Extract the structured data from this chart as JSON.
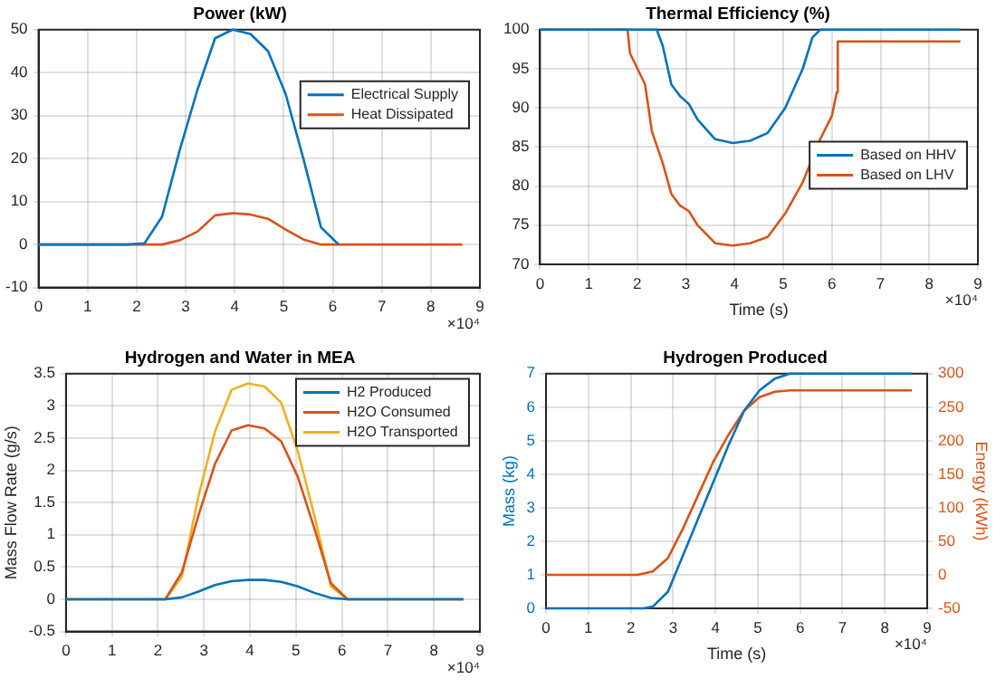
{
  "chart_data": [
    {
      "type": "line",
      "title": "Power (kW)",
      "xlim": [
        0,
        9
      ],
      "xticks": [
        0,
        1,
        2,
        3,
        4,
        5,
        6,
        7,
        8,
        9
      ],
      "ylim": [
        -10,
        50
      ],
      "yticks": [
        -10,
        0,
        10,
        20,
        30,
        40,
        50
      ],
      "grid": true,
      "legend": "top right",
      "annotations": [
        "×10⁴"
      ],
      "series": [
        {
          "name": "Electrical Supply",
          "color": "#0072bd",
          "x": [
            0,
            1.8,
            2.16,
            2.52,
            2.88,
            3.24,
            3.6,
            3.96,
            4.32,
            4.68,
            5.04,
            5.4,
            5.76,
            6.12
          ],
          "values": [
            0,
            0,
            0.3,
            6.5,
            22,
            36,
            48,
            50,
            49,
            45,
            35,
            20,
            4,
            0
          ]
        },
        {
          "name": "Heat Dissipated",
          "color": "#d95319",
          "x": [
            0,
            2.16,
            2.52,
            2.88,
            3.24,
            3.6,
            3.96,
            4.32,
            4.68,
            5.04,
            5.4,
            5.76,
            6.12,
            8.64
          ],
          "values": [
            0,
            0,
            0,
            1,
            3,
            6.8,
            7.3,
            7,
            6,
            3.5,
            1.2,
            0,
            0,
            0
          ]
        }
      ]
    },
    {
      "type": "line",
      "title": "Thermal Efficiency (%)",
      "xlabel": "Time (s)",
      "xlim": [
        0,
        9
      ],
      "xticks": [
        0,
        1,
        2,
        3,
        4,
        5,
        6,
        7,
        8,
        9
      ],
      "ylim": [
        70,
        100
      ],
      "yticks": [
        70,
        75,
        80,
        85,
        90,
        95,
        100
      ],
      "grid": true,
      "legend": "right",
      "annotations": [
        "×10⁴"
      ],
      "series": [
        {
          "name": "Based on HHV",
          "color": "#0072bd",
          "x": [
            0,
            2.4,
            2.52,
            2.7,
            2.88,
            3.06,
            3.24,
            3.6,
            3.96,
            4.32,
            4.68,
            5.04,
            5.4,
            5.6,
            5.76,
            8.64
          ],
          "values": [
            100,
            100,
            98,
            93,
            91.5,
            90.5,
            88.5,
            86,
            85.5,
            85.8,
            86.8,
            90,
            95,
            99,
            100,
            100
          ]
        },
        {
          "name": "Based on LHV",
          "color": "#d95319",
          "x": [
            0,
            1.8,
            1.85,
            2.16,
            2.3,
            2.52,
            2.7,
            2.88,
            3.06,
            3.24,
            3.6,
            3.96,
            4.32,
            4.68,
            5.04,
            5.4,
            5.76,
            6,
            6.1,
            6.12,
            8.64
          ],
          "values": [
            100,
            100,
            97,
            93,
            87,
            83,
            79,
            77.5,
            76.8,
            75,
            72.7,
            72.4,
            72.7,
            73.5,
            76.5,
            80.5,
            86,
            89,
            92,
            98.5,
            98.5
          ]
        }
      ]
    },
    {
      "type": "line",
      "title": "Hydrogen and Water in MEA",
      "ylabel": "Mass Flow Rate (g/s)",
      "xlim": [
        0,
        9
      ],
      "xticks": [
        0,
        1,
        2,
        3,
        4,
        5,
        6,
        7,
        8,
        9
      ],
      "ylim": [
        -0.5,
        3.5
      ],
      "yticks": [
        -0.5,
        0,
        0.5,
        1,
        1.5,
        2,
        2.5,
        3,
        3.5
      ],
      "grid": true,
      "legend": "top right",
      "annotations": [
        "×10⁴"
      ],
      "series": [
        {
          "name": "H2 Produced",
          "color": "#0072bd",
          "x": [
            0,
            2.16,
            2.52,
            2.88,
            3.24,
            3.6,
            3.96,
            4.32,
            4.68,
            5.04,
            5.4,
            5.76,
            6.12,
            8.64
          ],
          "values": [
            0,
            0,
            0.03,
            0.12,
            0.22,
            0.28,
            0.3,
            0.3,
            0.27,
            0.2,
            0.1,
            0.02,
            0,
            0
          ]
        },
        {
          "name": "H2O Consumed",
          "color": "#d95319",
          "x": [
            0,
            2.16,
            2.52,
            2.88,
            3.24,
            3.6,
            3.96,
            4.32,
            4.68,
            5.04,
            5.4,
            5.76,
            6.12,
            8.64
          ],
          "values": [
            0,
            0,
            0.42,
            1.3,
            2.1,
            2.62,
            2.7,
            2.65,
            2.45,
            1.9,
            1.1,
            0.25,
            0,
            0
          ]
        },
        {
          "name": "H2O Transported",
          "color": "#edb120",
          "x": [
            0,
            2.16,
            2.52,
            2.88,
            3.24,
            3.6,
            3.96,
            4.32,
            4.68,
            5.04,
            5.4,
            5.76,
            6.12,
            8.64
          ],
          "values": [
            0,
            0,
            0.35,
            1.6,
            2.6,
            3.25,
            3.35,
            3.3,
            3.05,
            2.3,
            1.3,
            0.2,
            0,
            0
          ]
        }
      ]
    },
    {
      "type": "line",
      "title": "Hydrogen Produced",
      "xlabel": "Time (s)",
      "ylabel": "Mass (kg)",
      "y2label": "Energy (kWh)",
      "xlim": [
        0,
        9
      ],
      "xticks": [
        0,
        1,
        2,
        3,
        4,
        5,
        6,
        7,
        8,
        9
      ],
      "ylim": [
        0,
        7
      ],
      "yticks": [
        0,
        1,
        2,
        3,
        4,
        5,
        6,
        7
      ],
      "y2lim": [
        -50,
        300
      ],
      "y2ticks": [
        -50,
        0,
        50,
        100,
        150,
        200,
        250,
        300
      ],
      "grid": true,
      "annotations": [
        "×10⁴"
      ],
      "series": [
        {
          "color": "#0072bd",
          "x": [
            0,
            2.3,
            2.52,
            2.88,
            3.24,
            3.6,
            3.96,
            4.32,
            4.68,
            5.04,
            5.4,
            5.76,
            8.64
          ],
          "values": [
            0,
            0,
            0.05,
            0.5,
            1.6,
            2.7,
            3.8,
            4.9,
            5.9,
            6.5,
            6.85,
            7,
            7
          ]
        },
        {
          "color": "#d95319",
          "axis": "y2",
          "x": [
            0,
            2.16,
            2.52,
            2.88,
            3.24,
            3.6,
            3.96,
            4.32,
            4.68,
            5.04,
            5.4,
            5.76,
            8.64
          ],
          "values": [
            0,
            0,
            5,
            25,
            70,
            120,
            170,
            210,
            245,
            265,
            273,
            275,
            275
          ]
        }
      ]
    }
  ]
}
